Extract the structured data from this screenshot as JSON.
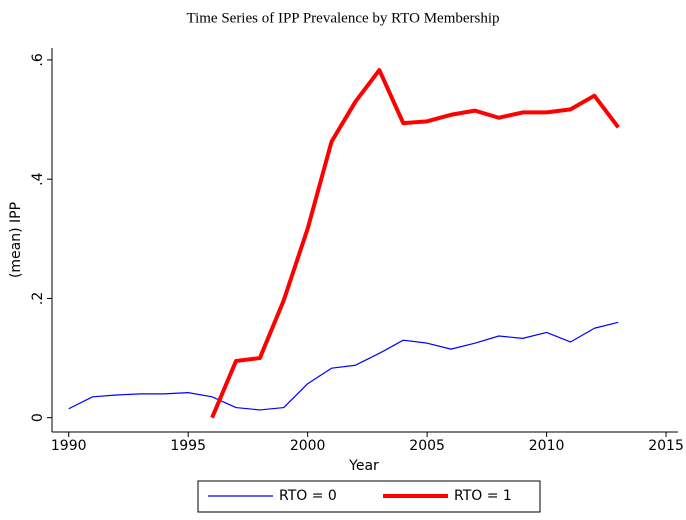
{
  "chart_data": {
    "type": "line",
    "title": "Time Series of IPP Prevalence by RTO Membership",
    "x_label": "Year",
    "y_label": "(mean) IPP",
    "x": [
      1990,
      1991,
      1992,
      1993,
      1994,
      1995,
      1996,
      1997,
      1998,
      1999,
      2000,
      2001,
      2002,
      2003,
      2004,
      2005,
      2006,
      2007,
      2008,
      2009,
      2010,
      2011,
      2012,
      2013
    ],
    "series": [
      {
        "name": "RTO = 0",
        "color": "#0000ff",
        "values": [
          0.015,
          0.035,
          0.038,
          0.04,
          0.04,
          0.042,
          0.035,
          0.017,
          0.013,
          0.017,
          0.057,
          0.083,
          0.088,
          0.108,
          0.13,
          0.125,
          0.115,
          0.125,
          0.137,
          0.133,
          0.143,
          0.127,
          0.15,
          0.16
        ]
      },
      {
        "name": "RTO = 1",
        "color": "#ff0000",
        "values": [
          null,
          null,
          null,
          null,
          null,
          null,
          0,
          0.095,
          0.1,
          0.197,
          0.317,
          0.463,
          0.53,
          0.583,
          0.494,
          0.497,
          0.508,
          0.515,
          0.503,
          0.512,
          0.512,
          0.517,
          0.54,
          0.487
        ]
      }
    ],
    "xlim": [
      1989.3,
      2015.5
    ],
    "xticks": [
      1990,
      1995,
      2000,
      2005,
      2010,
      2015
    ],
    "ylim": [
      -0.024,
      0.62
    ],
    "yticks": [
      0,
      {
        "value": 0.2,
        "label": ".2"
      },
      {
        "value": 0.4,
        "label": ".4"
      },
      {
        "value": 0.6,
        "label": ".6"
      }
    ],
    "legend": "bottom"
  }
}
